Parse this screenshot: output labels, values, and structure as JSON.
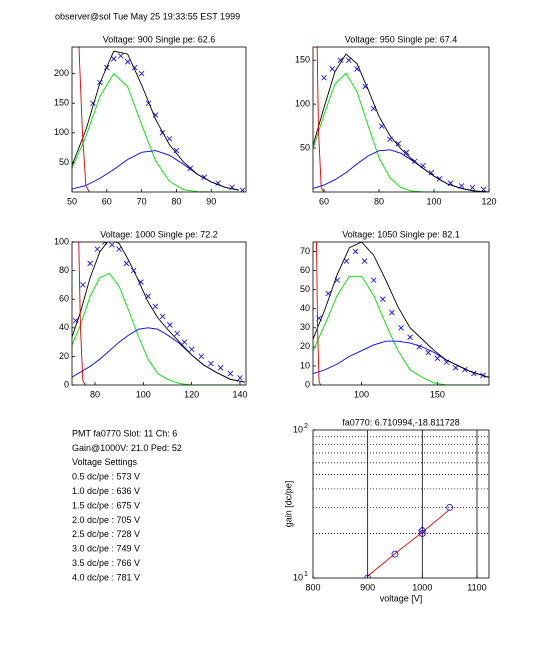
{
  "header": "observer@sol  Tue May 25 19:33:55 EST 1999",
  "info": [
    "PMT fa0770 Slot: 11 Ch: 6",
    "Gain@1000V: 21.0 Ped: 52",
    "Voltage Settings",
    "0.5 dc/pe : 573 V",
    "1.0 dc/pe : 636 V",
    "1.5 dc/pe : 675 V",
    "2.0 dc/pe : 705 V",
    "2.5 dc/pe : 728 V",
    "3.0 dc/pe : 749 V",
    "3.5 dc/pe : 766 V",
    "4.0 dc/pe : 781 V"
  ],
  "chart_data": [
    {
      "type": "line",
      "title": "Voltage: 900 Single pe: 62.6",
      "xlim": [
        50,
        100
      ],
      "ylim": [
        0,
        245
      ],
      "xticks": [
        50,
        60,
        70,
        80,
        90
      ],
      "yticks": [
        50,
        100,
        150,
        200
      ],
      "series": [
        {
          "color": "#0000ff",
          "marker": "x",
          "x": [
            56,
            58,
            60,
            62,
            64,
            66,
            68,
            70,
            72,
            74,
            76,
            78,
            80,
            84,
            88,
            92,
            96,
            99
          ],
          "values": [
            150,
            185,
            210,
            225,
            230,
            220,
            210,
            200,
            150,
            130,
            100,
            90,
            70,
            40,
            25,
            15,
            8,
            3
          ]
        },
        {
          "color": "#00dd00",
          "x": [
            50,
            54,
            58,
            62,
            66,
            70,
            74,
            78,
            82,
            86,
            90,
            94,
            98
          ],
          "values": [
            40,
            94,
            161,
            200,
            178,
            114,
            53,
            18,
            4,
            0.5,
            0,
            0,
            0
          ]
        },
        {
          "color": "#0000ff",
          "x": [
            50,
            54,
            58,
            62,
            66,
            70,
            74,
            78,
            82,
            86,
            90,
            94,
            98
          ],
          "values": [
            5,
            11,
            23,
            38,
            55,
            67,
            70,
            62,
            47,
            30,
            17,
            8,
            3
          ]
        },
        {
          "color": "#000000",
          "x": [
            50,
            54,
            58,
            62,
            66,
            70,
            74,
            78,
            82,
            86,
            90,
            94,
            98
          ],
          "values": [
            45,
            105,
            184,
            238,
            233,
            181,
            123,
            80,
            51,
            30,
            17,
            8,
            3
          ]
        },
        {
          "color": "#dd0000",
          "x": [
            51.5,
            52,
            53,
            54,
            55
          ],
          "values": [
            245,
            245,
            100,
            10,
            0
          ]
        }
      ]
    },
    {
      "type": "line",
      "title": "Voltage: 950 Single pe: 67.4",
      "xlim": [
        56,
        120
      ],
      "ylim": [
        0,
        165
      ],
      "xticks": [
        60,
        80,
        100,
        120
      ],
      "yticks": [
        50,
        100,
        150
      ],
      "series": [
        {
          "color": "#0000ff",
          "marker": "x",
          "x": [
            60,
            63,
            66,
            69,
            72,
            75,
            78,
            81,
            84,
            87,
            90,
            93,
            96,
            99,
            102,
            106,
            110,
            114,
            118
          ],
          "values": [
            130,
            140,
            150,
            150,
            140,
            120,
            95,
            75,
            60,
            55,
            45,
            35,
            30,
            22,
            15,
            10,
            7,
            5,
            3
          ]
        },
        {
          "color": "#00dd00",
          "x": [
            56,
            60,
            64,
            68,
            72,
            76,
            80,
            84,
            88,
            92,
            96,
            100,
            105,
            110,
            115,
            120
          ],
          "values": [
            49,
            88,
            123,
            135,
            114,
            76,
            39,
            16,
            5,
            1,
            0,
            0,
            0,
            0,
            0,
            0
          ]
        },
        {
          "color": "#0000ff",
          "x": [
            56,
            60,
            64,
            68,
            72,
            76,
            80,
            84,
            88,
            92,
            96,
            100,
            105,
            110,
            115,
            120
          ],
          "values": [
            4,
            8,
            14,
            22,
            32,
            41,
            47,
            48,
            44,
            36,
            27,
            18,
            9,
            4,
            1,
            0
          ]
        },
        {
          "color": "#000000",
          "x": [
            56,
            60,
            64,
            68,
            72,
            76,
            80,
            84,
            88,
            92,
            96,
            100,
            105,
            110,
            115,
            120
          ],
          "values": [
            53,
            96,
            137,
            157,
            146,
            117,
            86,
            64,
            49,
            37,
            27,
            18,
            9,
            4,
            1,
            0
          ]
        },
        {
          "color": "#dd0000",
          "x": [
            57,
            57.5,
            58,
            59,
            60
          ],
          "values": [
            165,
            165,
            70,
            5,
            0
          ]
        }
      ]
    },
    {
      "type": "line",
      "title": "Voltage: 1000 Single pe: 72.2",
      "xlim": [
        70.5,
        142.5
      ],
      "ylim": [
        0,
        100
      ],
      "xticks": [
        80,
        100,
        120,
        140
      ],
      "yticks": [
        0,
        20,
        40,
        60,
        80,
        100
      ],
      "series": [
        {
          "color": "#0000ff",
          "marker": "x",
          "x": [
            72,
            75,
            78,
            81,
            84,
            87,
            90,
            93,
            96,
            99,
            102,
            105,
            108,
            111,
            114,
            117,
            120,
            124,
            128,
            132,
            136,
            140
          ],
          "values": [
            45,
            70,
            85,
            95,
            100,
            98,
            95,
            85,
            80,
            72,
            62,
            55,
            48,
            42,
            36,
            30,
            25,
            20,
            15,
            12,
            8,
            5
          ]
        },
        {
          "color": "#00dd00",
          "x": [
            70,
            74,
            78,
            82,
            86,
            90,
            94,
            98,
            102,
            106,
            110,
            115,
            120,
            125,
            130,
            136,
            142
          ],
          "values": [
            26,
            42,
            62,
            75,
            78,
            69,
            52,
            34,
            18,
            8,
            4,
            1,
            0,
            0,
            0,
            0,
            0
          ]
        },
        {
          "color": "#0000ff",
          "x": [
            70,
            74,
            78,
            82,
            86,
            90,
            94,
            98,
            102,
            106,
            110,
            115,
            120,
            125,
            130,
            136,
            142
          ],
          "values": [
            5,
            9,
            13,
            18,
            24,
            30,
            35,
            39,
            40,
            39,
            35,
            29,
            21,
            14,
            9,
            4,
            2
          ]
        },
        {
          "color": "#000000",
          "x": [
            70,
            74,
            78,
            82,
            86,
            90,
            94,
            98,
            102,
            106,
            110,
            115,
            120,
            125,
            130,
            136,
            142
          ],
          "values": [
            31,
            51,
            75,
            93,
            102,
            99,
            87,
            73,
            58,
            47,
            39,
            30,
            21,
            14,
            9,
            4,
            2
          ]
        },
        {
          "color": "#dd0000",
          "x": [
            73,
            73.3,
            74,
            75,
            76
          ],
          "values": [
            100,
            100,
            40,
            3,
            0
          ]
        }
      ]
    },
    {
      "type": "line",
      "title": "Voltage: 1050 Single pe: 82.1",
      "xlim": [
        68,
        184
      ],
      "ylim": [
        0,
        75
      ],
      "xticks": [
        100,
        150
      ],
      "yticks": [
        0,
        10,
        20,
        30,
        40,
        50,
        60,
        70
      ],
      "series": [
        {
          "color": "#0000ff",
          "marker": "x",
          "x": [
            72,
            78,
            84,
            90,
            96,
            102,
            108,
            114,
            120,
            126,
            132,
            138,
            144,
            150,
            156,
            162,
            168,
            174,
            180
          ],
          "values": [
            35,
            48,
            55,
            65,
            70,
            65,
            55,
            45,
            38,
            30,
            25,
            20,
            17,
            14,
            12,
            9,
            8,
            6,
            5
          ]
        },
        {
          "color": "#00dd00",
          "x": [
            68,
            76,
            84,
            92,
            100,
            108,
            116,
            124,
            132,
            140,
            148,
            156,
            164,
            172,
            184
          ],
          "values": [
            18,
            32,
            47,
            57,
            57,
            47,
            32,
            18,
            8,
            4,
            1,
            0,
            0,
            0,
            0
          ]
        },
        {
          "color": "#0000ff",
          "x": [
            68,
            76,
            84,
            92,
            100,
            108,
            116,
            124,
            132,
            140,
            148,
            156,
            164,
            172,
            184
          ],
          "values": [
            6,
            8,
            11,
            15,
            18,
            21,
            23,
            23,
            22,
            20,
            17,
            13,
            10,
            7,
            4
          ]
        },
        {
          "color": "#000000",
          "x": [
            68,
            76,
            84,
            92,
            100,
            108,
            116,
            124,
            132,
            140,
            148,
            156,
            164,
            172,
            184
          ],
          "values": [
            24,
            40,
            58,
            72,
            75,
            68,
            55,
            41,
            30,
            24,
            18,
            13,
            10,
            7,
            4
          ]
        },
        {
          "color": "#dd0000",
          "x": [
            70,
            70.3,
            71,
            72,
            73
          ],
          "values": [
            75,
            75,
            30,
            2,
            0
          ]
        }
      ]
    },
    {
      "type": "line",
      "title": "fa0770: 6.710994,-18.811728",
      "x_label": "voltage [V]",
      "y_label": "gain [dc/pe]",
      "log_y": true,
      "grid": true,
      "xlim": [
        800,
        1122
      ],
      "ylim": [
        10,
        100
      ],
      "xticks": [
        800,
        900,
        1000,
        1100
      ],
      "yticks": [
        {
          "value": 10,
          "label": "10",
          "exponent": "1"
        },
        {
          "value": 100,
          "label": "10",
          "exponent": "2"
        }
      ],
      "minor_yticks": [
        20,
        30,
        40,
        50,
        60,
        70,
        80,
        90
      ],
      "series": [
        {
          "color": "#dd0000",
          "x": [
            900,
            950,
            1000,
            1050
          ],
          "values": [
            10.3,
            14.6,
            20.4,
            29
          ]
        },
        {
          "color": "#0000ff",
          "marker": "o",
          "x": [
            900,
            950,
            1000,
            1050
          ],
          "values": [
            10,
            14.5,
            20,
            30
          ]
        },
        {
          "color": "#0000ff",
          "marker": "d",
          "x": [
            1000
          ],
          "values": [
            21
          ]
        }
      ]
    }
  ]
}
